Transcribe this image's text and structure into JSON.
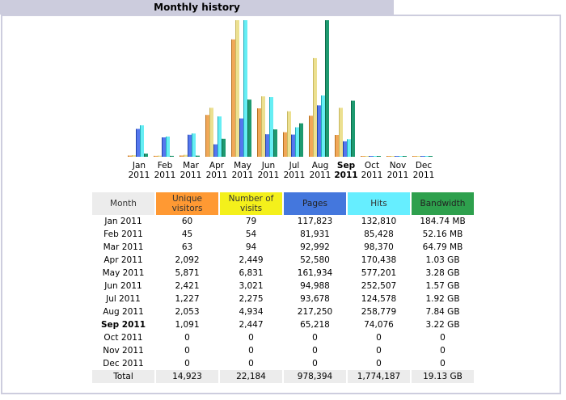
{
  "page": {
    "title": "Monthly history"
  },
  "table": {
    "headers": {
      "month": "Month",
      "unique_visitors": [
        "Unique",
        "visitors"
      ],
      "visits": [
        "Number of",
        "visits"
      ],
      "pages": "Pages",
      "hits": "Hits",
      "bandwidth": "Bandwidth"
    },
    "rows": [
      {
        "month": "Jan 2011",
        "unique": "60",
        "visits": "79",
        "pages": "117,823",
        "hits": "132,810",
        "bandwidth": "184.74 MB",
        "current": false
      },
      {
        "month": "Feb 2011",
        "unique": "45",
        "visits": "54",
        "pages": "81,931",
        "hits": "85,428",
        "bandwidth": "52.16 MB",
        "current": false
      },
      {
        "month": "Mar 2011",
        "unique": "63",
        "visits": "94",
        "pages": "92,992",
        "hits": "98,370",
        "bandwidth": "64.79 MB",
        "current": false
      },
      {
        "month": "Apr 2011",
        "unique": "2,092",
        "visits": "2,449",
        "pages": "52,580",
        "hits": "170,438",
        "bandwidth": "1.03 GB",
        "current": false
      },
      {
        "month": "May 2011",
        "unique": "5,871",
        "visits": "6,831",
        "pages": "161,934",
        "hits": "577,201",
        "bandwidth": "3.28 GB",
        "current": false
      },
      {
        "month": "Jun 2011",
        "unique": "2,421",
        "visits": "3,021",
        "pages": "94,988",
        "hits": "252,507",
        "bandwidth": "1.57 GB",
        "current": false
      },
      {
        "month": "Jul 2011",
        "unique": "1,227",
        "visits": "2,275",
        "pages": "93,678",
        "hits": "124,578",
        "bandwidth": "1.92 GB",
        "current": false
      },
      {
        "month": "Aug 2011",
        "unique": "2,053",
        "visits": "4,934",
        "pages": "217,250",
        "hits": "258,779",
        "bandwidth": "7.84 GB",
        "current": false
      },
      {
        "month": "Sep 2011",
        "unique": "1,091",
        "visits": "2,447",
        "pages": "65,218",
        "hits": "74,076",
        "bandwidth": "3.22 GB",
        "current": true
      },
      {
        "month": "Oct 2011",
        "unique": "0",
        "visits": "0",
        "pages": "0",
        "hits": "0",
        "bandwidth": "0",
        "current": false
      },
      {
        "month": "Nov 2011",
        "unique": "0",
        "visits": "0",
        "pages": "0",
        "hits": "0",
        "bandwidth": "0",
        "current": false
      },
      {
        "month": "Dec 2011",
        "unique": "0",
        "visits": "0",
        "pages": "0",
        "hits": "0",
        "bandwidth": "0",
        "current": false
      }
    ],
    "total": {
      "month": "Total",
      "unique": "14,923",
      "visits": "22,184",
      "pages": "978,394",
      "hits": "1,774,187",
      "bandwidth": "19.13 GB"
    }
  },
  "colors": {
    "unique_visitors": "#f0a040",
    "visits": "#e8d880",
    "pages": "#4466dd",
    "hits": "#55dde8",
    "bandwidth": "#1a8a66"
  },
  "chart_data": {
    "type": "bar",
    "title": "Monthly history",
    "categories": [
      "Jan 2011",
      "Feb 2011",
      "Mar 2011",
      "Apr 2011",
      "May 2011",
      "Jun 2011",
      "Jul 2011",
      "Aug 2011",
      "Sep 2011",
      "Oct 2011",
      "Nov 2011",
      "Dec 2011"
    ],
    "category_labels": [
      [
        "Jan",
        "2011"
      ],
      [
        "Feb",
        "2011"
      ],
      [
        "Mar",
        "2011"
      ],
      [
        "Apr",
        "2011"
      ],
      [
        "May",
        "2011"
      ],
      [
        "Jun",
        "2011"
      ],
      [
        "Jul",
        "2011"
      ],
      [
        "Aug",
        "2011"
      ],
      [
        "Sep",
        "2011"
      ],
      [
        "Oct",
        "2011"
      ],
      [
        "Nov",
        "2011"
      ],
      [
        "Dec",
        "2011"
      ]
    ],
    "highlight_category": "Sep 2011",
    "series": [
      {
        "name": "Unique visitors",
        "key": "unique_visitors",
        "scale_group": "visits",
        "values": [
          60,
          45,
          63,
          2092,
          5871,
          2421,
          1227,
          2053,
          1091,
          0,
          0,
          0
        ]
      },
      {
        "name": "Number of visits",
        "key": "visits",
        "scale_group": "visits",
        "values": [
          79,
          54,
          94,
          2449,
          6831,
          3021,
          2275,
          4934,
          2447,
          0,
          0,
          0
        ]
      },
      {
        "name": "Pages",
        "key": "pages",
        "scale_group": "hits",
        "values": [
          117823,
          81931,
          92992,
          52580,
          161934,
          94988,
          93678,
          217250,
          65218,
          0,
          0,
          0
        ]
      },
      {
        "name": "Hits",
        "key": "hits",
        "scale_group": "hits",
        "values": [
          132810,
          85428,
          98370,
          170438,
          577201,
          252507,
          124578,
          258779,
          74076,
          0,
          0,
          0
        ]
      },
      {
        "name": "Bandwidth (GB)",
        "key": "bandwidth",
        "scale_group": "bandwidth",
        "values": [
          0.1804,
          0.0509,
          0.0633,
          1.03,
          3.28,
          1.57,
          1.92,
          7.84,
          3.22,
          0,
          0,
          0
        ]
      }
    ],
    "xlabel": "",
    "ylabel": "",
    "grid": false,
    "legend": "none"
  }
}
